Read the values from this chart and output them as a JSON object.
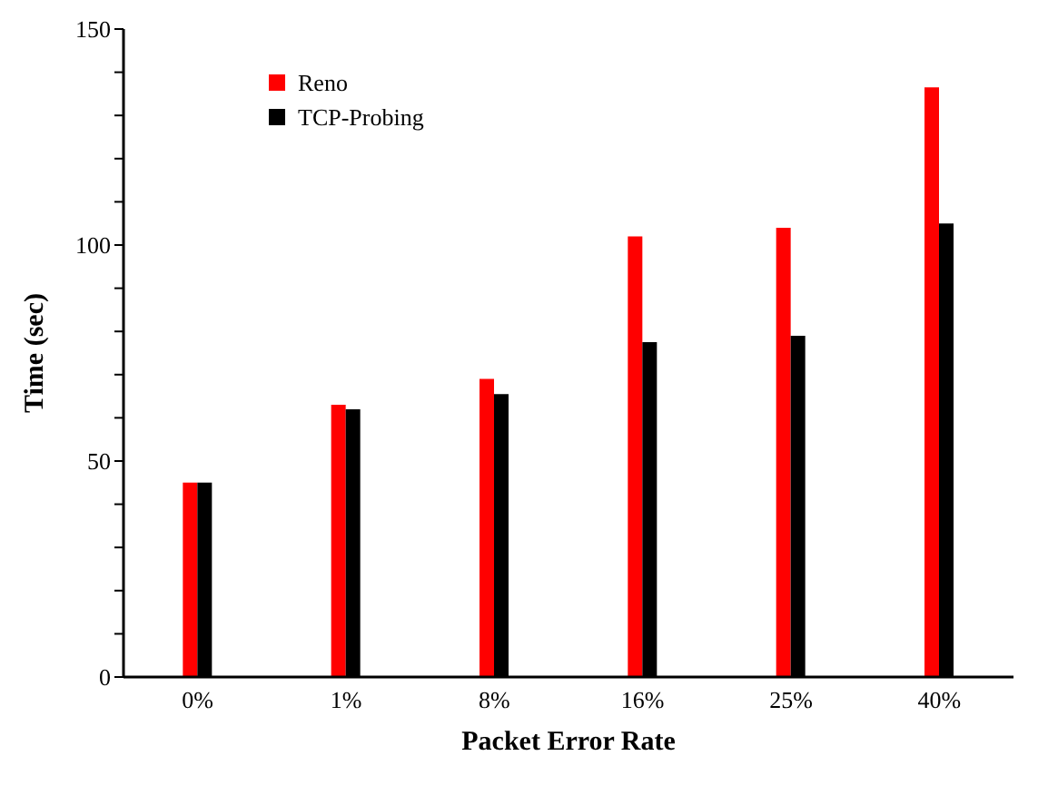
{
  "chart_data": {
    "type": "bar",
    "xlabel": "Packet Error Rate",
    "ylabel": "Time (sec)",
    "categories": [
      "0%",
      "1%",
      "8%",
      "16%",
      "25%",
      "40%"
    ],
    "series": [
      {
        "name": "Reno",
        "color": "#ff0000",
        "values": [
          45,
          63,
          69,
          102,
          104,
          136.5
        ]
      },
      {
        "name": "TCP-Probing",
        "color": "#000000",
        "values": [
          45,
          62,
          65.5,
          77.5,
          79,
          105
        ]
      }
    ],
    "ylim": [
      0,
      150
    ],
    "yticks": [
      0,
      {
        "value": 10,
        "label": null
      },
      {
        "value": 20,
        "label": null
      },
      {
        "value": 30,
        "label": null
      },
      {
        "value": 40,
        "label": null
      },
      50,
      {
        "value": 60,
        "label": null
      },
      {
        "value": 70,
        "label": null
      },
      {
        "value": 80,
        "label": null
      },
      {
        "value": 90,
        "label": null
      },
      100,
      {
        "value": 110,
        "label": null
      },
      {
        "value": 120,
        "label": null
      },
      {
        "value": 130,
        "label": null
      },
      {
        "value": 140,
        "label": null
      },
      150
    ],
    "grid": false,
    "legend": "top left"
  }
}
